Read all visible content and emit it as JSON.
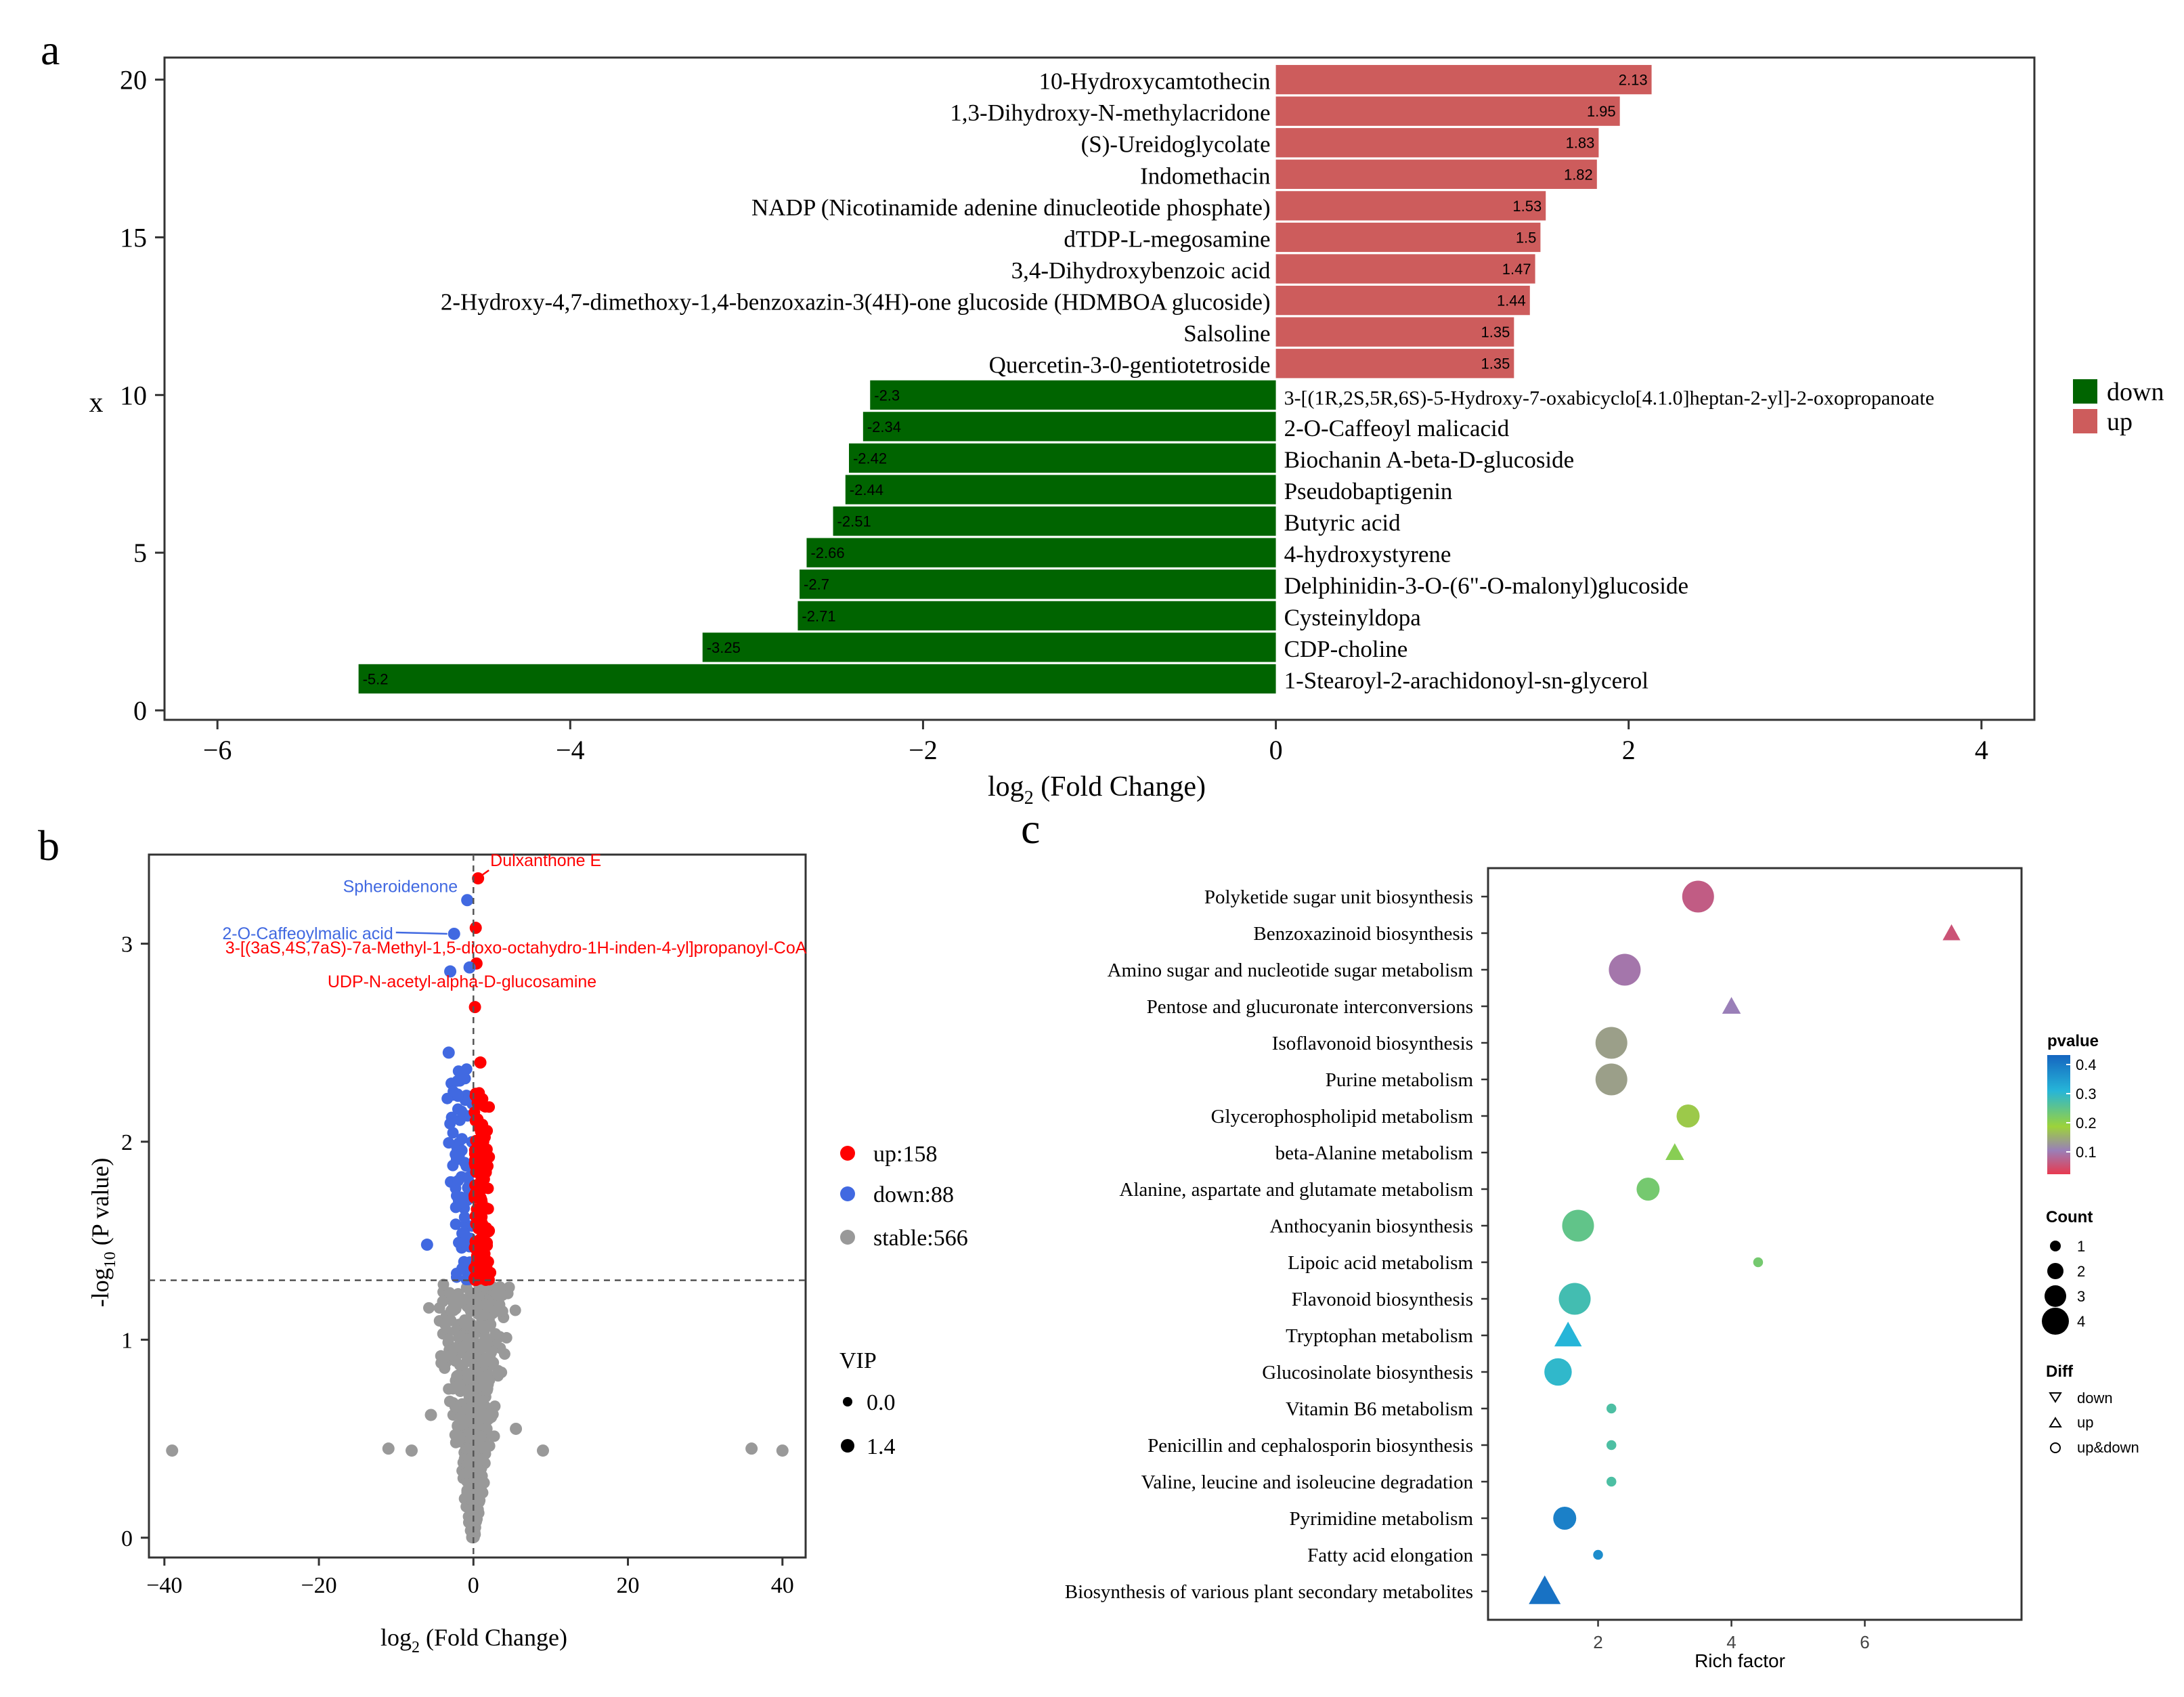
{
  "panel_labels": {
    "a": "a",
    "b": "b",
    "c": "c"
  },
  "colors": {
    "up_bar": "#cd5c5c",
    "down_bar": "#006400",
    "volcano_up": "#ff0000",
    "volcano_down": "#4169e1",
    "volcano_stable": "#999999"
  },
  "chart_data": [
    {
      "type": "bar",
      "orientation": "horizontal",
      "xlabel_main": "log",
      "xlabel_sub": "2",
      "xlabel_rest": " (Fold Change)",
      "ylabel": "x",
      "xlim": [
        -6.3,
        4.3
      ],
      "ylim": [
        -0.3,
        20.7
      ],
      "xticks": [
        -6,
        -4,
        -2,
        0,
        2,
        4
      ],
      "yticks": [
        0,
        5,
        10,
        15,
        20
      ],
      "legend": {
        "position": "right",
        "entries": [
          {
            "label": "down",
            "color": "#006400"
          },
          {
            "label": "up",
            "color": "#cd5c5c"
          }
        ]
      },
      "bars": [
        {
          "y": 20,
          "label": "10-Hydroxycamtothecin",
          "value": 2.13,
          "value_label": "2.13",
          "group": "up"
        },
        {
          "y": 19,
          "label": "1,3-Dihydroxy-N-methylacridone",
          "value": 1.95,
          "value_label": "1.95",
          "group": "up"
        },
        {
          "y": 18,
          "label": "(S)-Ureidoglycolate",
          "value": 1.83,
          "value_label": "1.83",
          "group": "up"
        },
        {
          "y": 17,
          "label": "Indomethacin",
          "value": 1.82,
          "value_label": "1.82",
          "group": "up"
        },
        {
          "y": 16,
          "label": "NADP (Nicotinamide adenine dinucleotide phosphate)",
          "value": 1.53,
          "value_label": "1.53",
          "group": "up"
        },
        {
          "y": 15,
          "label": "dTDP-L-megosamine",
          "value": 1.5,
          "value_label": "1.5",
          "group": "up"
        },
        {
          "y": 14,
          "label": "3,4-Dihydroxybenzoic acid",
          "value": 1.47,
          "value_label": "1.47",
          "group": "up"
        },
        {
          "y": 13,
          "label": "2-Hydroxy-4,7-dimethoxy-1,4-benzoxazin-3(4H)-one glucoside (HDMBOA glucoside)",
          "value": 1.44,
          "value_label": "1.44",
          "group": "up"
        },
        {
          "y": 12,
          "label": "Salsoline",
          "value": 1.35,
          "value_label": "1.35",
          "group": "up"
        },
        {
          "y": 11,
          "label": "Quercetin-3-0-gentiotetroside",
          "value": 1.35,
          "value_label": "1.35",
          "group": "up"
        },
        {
          "y": 10,
          "label": "3-[(1R,2S,5R,6S)-5-Hydroxy-7-oxabicyclo[4.1.0]heptan-2-yl]-2-oxopropanoate",
          "value": -2.3,
          "value_label": "-2.3",
          "group": "down"
        },
        {
          "y": 9,
          "label": "2-O-Caffeoyl malicacid",
          "value": -2.34,
          "value_label": "-2.34",
          "group": "down"
        },
        {
          "y": 8,
          "label": "Biochanin A-beta-D-glucoside",
          "value": -2.42,
          "value_label": "-2.42",
          "group": "down"
        },
        {
          "y": 7,
          "label": "Pseudobaptigenin",
          "value": -2.44,
          "value_label": "-2.44",
          "group": "down"
        },
        {
          "y": 6,
          "label": "Butyric acid",
          "value": -2.51,
          "value_label": "-2.51",
          "group": "down"
        },
        {
          "y": 5,
          "label": "4-hydroxystyrene",
          "value": -2.66,
          "value_label": "-2.66",
          "group": "down"
        },
        {
          "y": 4,
          "label": "Delphinidin-3-O-(6\"-O-malonyl)glucoside",
          "value": -2.7,
          "value_label": "-2.7",
          "group": "down"
        },
        {
          "y": 3,
          "label": "Cysteinyldopa",
          "value": -2.71,
          "value_label": "-2.71",
          "group": "down"
        },
        {
          "y": 2,
          "label": "CDP-choline",
          "value": -3.25,
          "value_label": "-3.25",
          "group": "down"
        },
        {
          "y": 1,
          "label": "1-Stearoyl-2-arachidonoyl-sn-glycerol",
          "value": -5.2,
          "value_label": "-5.2",
          "group": "down"
        }
      ]
    },
    {
      "type": "scatter",
      "subtype": "volcano",
      "xlabel_main": "log",
      "xlabel_sub": "2",
      "xlabel_rest": " (Fold Change)",
      "ylabel_main": "-log",
      "ylabel_sub": "10",
      "ylabel_rest": " (P value)",
      "xlim": [
        -42,
        43
      ],
      "ylim": [
        -0.1,
        3.45
      ],
      "xticks": [
        -40,
        -20,
        0,
        20,
        40
      ],
      "yticks": [
        0,
        1,
        2,
        3
      ],
      "thresholds": {
        "x": 0,
        "y": 1.3
      },
      "legend": {
        "position": "right",
        "groups": [
          {
            "label": "up:158",
            "color": "#ff0000"
          },
          {
            "label": "down:88",
            "color": "#4169e1"
          },
          {
            "label": "stable:566",
            "color": "#999999"
          }
        ],
        "vip_title": "VIP",
        "vip_entries": [
          "0.0",
          "1.4"
        ]
      },
      "annotations": [
        {
          "text": "Dulxanthone E",
          "x": 0.6,
          "y": 3.33,
          "color": "#ff0000"
        },
        {
          "text": "Spheroidenone",
          "x": -0.8,
          "y": 3.22,
          "color": "#4169e1"
        },
        {
          "text": "2-O-Caffeoylmalic acid",
          "x": -2.5,
          "y": 3.05,
          "color": "#4169e1"
        },
        {
          "text": "3-[(3aS,4S,7aS)-7a-Methyl-1,5-dioxo-octahydro-1H-inden-4-yl]propanoyl-CoA",
          "x": 0.3,
          "y": 3.08,
          "color": "#ff0000"
        },
        {
          "text": "UDP-N-acetyl-alpha-D-glucosamine",
          "x": 0.4,
          "y": 2.9,
          "color": "#ff0000"
        }
      ],
      "highlight_points": [
        {
          "x": 0.6,
          "y": 3.33,
          "group": "up"
        },
        {
          "x": -0.8,
          "y": 3.22,
          "group": "down"
        },
        {
          "x": -2.5,
          "y": 3.05,
          "group": "down"
        },
        {
          "x": 0.3,
          "y": 3.08,
          "group": "up"
        },
        {
          "x": 0.4,
          "y": 2.9,
          "group": "up"
        },
        {
          "x": -3.0,
          "y": 2.86,
          "group": "down"
        },
        {
          "x": -0.5,
          "y": 2.88,
          "group": "down"
        },
        {
          "x": 0.2,
          "y": 2.68,
          "group": "up"
        },
        {
          "x": -3.2,
          "y": 2.45,
          "group": "down"
        },
        {
          "x": 0.9,
          "y": 2.4,
          "group": "up"
        },
        {
          "x": -6.0,
          "y": 1.48,
          "group": "down"
        },
        {
          "x": 2.0,
          "y": 1.55,
          "group": "up"
        },
        {
          "x": -39,
          "y": 0.44,
          "group": "stable"
        },
        {
          "x": 36,
          "y": 0.45,
          "group": "stable"
        },
        {
          "x": 40,
          "y": 0.44,
          "group": "stable"
        },
        {
          "x": -11,
          "y": 0.45,
          "group": "stable"
        },
        {
          "x": -8,
          "y": 0.44,
          "group": "stable"
        },
        {
          "x": 9,
          "y": 0.44,
          "group": "stable"
        },
        {
          "x": 5.5,
          "y": 0.55,
          "group": "stable"
        },
        {
          "x": -5.5,
          "y": 0.62,
          "group": "stable"
        }
      ],
      "point_counts": {
        "up": 158,
        "down": 88,
        "stable": 566
      }
    },
    {
      "type": "scatter",
      "subtype": "enrichment-bubble",
      "xlabel": "Rich factor",
      "xlim": [
        0.35,
        8.35
      ],
      "xticks": [
        2,
        4,
        6
      ],
      "legend": {
        "position": "right",
        "pvalue_title": "pvalue",
        "pvalue_ticks": [
          "0.4",
          "0.3",
          "0.2",
          "0.1"
        ],
        "count_title": "Count",
        "count_entries": [
          "1",
          "2",
          "3",
          "4"
        ],
        "diff_title": "Diff",
        "diff_entries": [
          "down",
          "up",
          "up&down"
        ]
      },
      "pathways": [
        {
          "name": "Polyketide sugar unit biosynthesis",
          "rich_factor": 3.5,
          "count": 3,
          "pvalue": 0.06,
          "diff": "up&down"
        },
        {
          "name": "Benzoxazinoid biosynthesis",
          "rich_factor": 7.3,
          "count": 1.4,
          "pvalue": 0.05,
          "diff": "up"
        },
        {
          "name": "Amino sugar and nucleotide sugar metabolism",
          "rich_factor": 2.4,
          "count": 3,
          "pvalue": 0.09,
          "diff": "up&down"
        },
        {
          "name": "Pentose and glucuronate interconversions",
          "rich_factor": 4.0,
          "count": 1.5,
          "pvalue": 0.1,
          "diff": "up"
        },
        {
          "name": "Isoflavonoid biosynthesis",
          "rich_factor": 2.2,
          "count": 3,
          "pvalue": 0.13,
          "diff": "up&down"
        },
        {
          "name": "Purine metabolism",
          "rich_factor": 2.2,
          "count": 3,
          "pvalue": 0.13,
          "diff": "up&down"
        },
        {
          "name": "Glycerophospholipid metabolism",
          "rich_factor": 3.35,
          "count": 2,
          "pvalue": 0.17,
          "diff": "up&down"
        },
        {
          "name": "beta-Alanine metabolism",
          "rich_factor": 3.15,
          "count": 1.5,
          "pvalue": 0.2,
          "diff": "up"
        },
        {
          "name": "Alanine, aspartate and glutamate metabolism",
          "rich_factor": 2.75,
          "count": 2,
          "pvalue": 0.22,
          "diff": "up&down"
        },
        {
          "name": "Anthocyanin biosynthesis",
          "rich_factor": 1.7,
          "count": 3,
          "pvalue": 0.24,
          "diff": "up&down"
        },
        {
          "name": "Lipoic acid metabolism",
          "rich_factor": 4.4,
          "count": 0.5,
          "pvalue": 0.22,
          "diff": "up&down"
        },
        {
          "name": "Flavonoid biosynthesis",
          "rich_factor": 1.65,
          "count": 3,
          "pvalue": 0.27,
          "diff": "up&down"
        },
        {
          "name": "Tryptophan metabolism",
          "rich_factor": 1.55,
          "count": 2.5,
          "pvalue": 0.3,
          "diff": "up"
        },
        {
          "name": "Glucosinolate biosynthesis",
          "rich_factor": 1.4,
          "count": 2.5,
          "pvalue": 0.29,
          "diff": "up&down"
        },
        {
          "name": "Vitamin B6 metabolism",
          "rich_factor": 2.2,
          "count": 0.5,
          "pvalue": 0.26,
          "diff": "up&down"
        },
        {
          "name": "Penicillin and cephalosporin biosynthesis",
          "rich_factor": 2.2,
          "count": 0.5,
          "pvalue": 0.26,
          "diff": "up&down"
        },
        {
          "name": "Valine, leucine and isoleucine degradation",
          "rich_factor": 2.2,
          "count": 0.5,
          "pvalue": 0.26,
          "diff": "up&down"
        },
        {
          "name": "Pyrimidine metabolism",
          "rich_factor": 1.5,
          "count": 2,
          "pvalue": 0.38,
          "diff": "up&down"
        },
        {
          "name": "Fatty acid elongation",
          "rich_factor": 2.0,
          "count": 0.5,
          "pvalue": 0.36,
          "diff": "up&down"
        },
        {
          "name": "Biosynthesis of various plant secondary metabolites",
          "rich_factor": 1.2,
          "count": 3,
          "pvalue": 0.4,
          "diff": "up"
        }
      ]
    }
  ]
}
